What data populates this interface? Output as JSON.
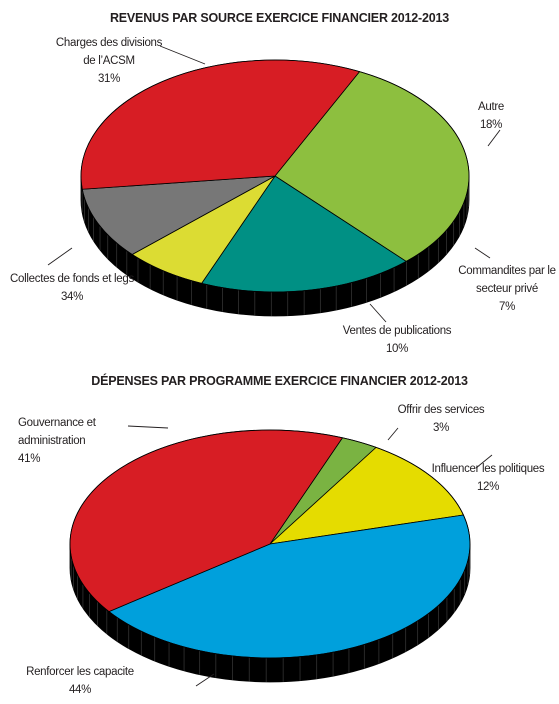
{
  "chart_data": [
    {
      "type": "pie",
      "title": "REVENUS PAR SOURCE EXERCICE FINANCIER 2012-2013",
      "slices": [
        {
          "name": "Charges des divisions de l’ACSM",
          "label_lines": [
            "Charges des divisions",
            "de l’ACSM"
          ],
          "value": 31,
          "value_label": "31%",
          "color": "#8dbf3f"
        },
        {
          "name": "Autre",
          "label_lines": [
            "Autre"
          ],
          "value": 18,
          "value_label": "18%",
          "color": "#009084"
        },
        {
          "name": "Commandites par le secteur privé",
          "label_lines": [
            "Commandites par le",
            "secteur privé"
          ],
          "value": 7,
          "value_label": "7%",
          "color": "#dcdc33"
        },
        {
          "name": "Ventes de publications",
          "label_lines": [
            "Ventes de publications"
          ],
          "value": 10,
          "value_label": "10%",
          "color": "#777777"
        },
        {
          "name": "Collectes de fonds et legs",
          "label_lines": [
            "Collectes de fonds et legs"
          ],
          "value": 34,
          "value_label": "34%",
          "color": "#d71d24"
        }
      ]
    },
    {
      "type": "pie",
      "title": "DÉPENSES PAR PROGRAMME EXERCICE FINANCIER 2012-2013",
      "slices": [
        {
          "name": "Offrir des services",
          "label_lines": [
            "Offrir des services"
          ],
          "value": 3,
          "value_label": "3%",
          "color": "#7ab342"
        },
        {
          "name": "Influencer les politiques",
          "label_lines": [
            "Influencer les politiques"
          ],
          "value": 12,
          "value_label": "12%",
          "color": "#e5dc00"
        },
        {
          "name": "Renforcer les capacite",
          "label_lines": [
            "Renforcer les capacite"
          ],
          "value": 44,
          "value_label": "44%",
          "color": "#00a0dc"
        },
        {
          "name": "Gouvernance et administration",
          "label_lines": [
            "Gouvernance et",
            "administration"
          ],
          "value": 41,
          "value_label": "41%",
          "color": "#d71d24"
        }
      ]
    }
  ]
}
